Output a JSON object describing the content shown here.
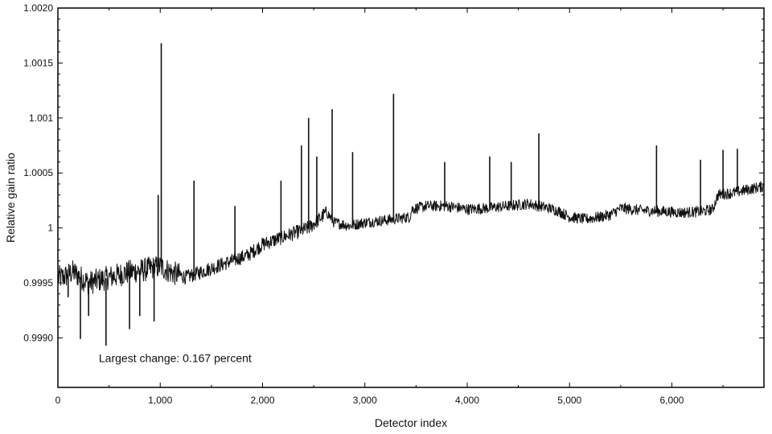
{
  "chart_data": {
    "type": "line",
    "title": "",
    "xlabel": "Detector index",
    "ylabel": "Relative gain ratio",
    "xlim": [
      0,
      6900
    ],
    "ylim": [
      0.99855,
      1.002
    ],
    "grid": false,
    "legend": "none",
    "x_ticks": [
      {
        "value": 0,
        "label": "0"
      },
      {
        "value": 1000,
        "label": "1,000"
      },
      {
        "value": 2000,
        "label": "2,000"
      },
      {
        "value": 3000,
        "label": "3,000"
      },
      {
        "value": 4000,
        "label": "4,000"
      },
      {
        "value": 5000,
        "label": "5,000"
      },
      {
        "value": 6000,
        "label": "6,000"
      }
    ],
    "y_ticks": [
      {
        "value": 0.999,
        "label": "0.9990"
      },
      {
        "value": 0.9995,
        "label": "0.9995"
      },
      {
        "value": 1.0,
        "label": "1"
      },
      {
        "value": 1.0005,
        "label": "1.0005"
      },
      {
        "value": 1.001,
        "label": "1.001"
      },
      {
        "value": 1.0015,
        "label": "1.0015"
      },
      {
        "value": 1.002,
        "label": "1.0020"
      }
    ],
    "series": [
      {
        "color": "#111111",
        "noise_amplitude": 5e-05,
        "x": [
          0,
          50,
          150,
          300,
          500,
          700,
          850,
          1000,
          1100,
          1250,
          1400,
          1550,
          1700,
          1850,
          2000,
          2150,
          2300,
          2450,
          2580,
          2620,
          2700,
          2850,
          3000,
          3200,
          3440,
          3460,
          3600,
          3800,
          4000,
          4200,
          4400,
          4600,
          4700,
          4800,
          4900,
          5000,
          5150,
          5300,
          5400,
          5500,
          5700,
          5900,
          6100,
          6300,
          6400,
          6450,
          6600,
          6750,
          6900
        ],
        "values": [
          0.99955,
          0.99955,
          0.9996,
          0.9995,
          0.99955,
          0.9996,
          0.99962,
          0.99965,
          0.9996,
          0.99955,
          0.9996,
          0.99965,
          0.9997,
          0.99975,
          0.99985,
          0.9999,
          0.99995,
          1.0,
          1.0001,
          1.00015,
          1.00005,
          1.00002,
          1.00005,
          1.00007,
          1.0001,
          1.00017,
          1.0002,
          1.0002,
          1.00017,
          1.00018,
          1.0002,
          1.00022,
          1.0002,
          1.00018,
          1.00015,
          1.0001,
          1.00008,
          1.0001,
          1.00012,
          1.00018,
          1.00016,
          1.00015,
          1.00014,
          1.00015,
          1.00017,
          1.0003,
          1.00032,
          1.00035,
          1.00038
        ],
        "spikes": [
          {
            "x": 1010,
            "y": 1.00168
          },
          {
            "x": 2450,
            "y": 1.001
          },
          {
            "x": 2680,
            "y": 1.00108
          },
          {
            "x": 3280,
            "y": 1.00122
          },
          {
            "x": 2880,
            "y": 1.00069
          },
          {
            "x": 4700,
            "y": 1.00086
          },
          {
            "x": 5850,
            "y": 1.00075
          },
          {
            "x": 1330,
            "y": 1.00043
          },
          {
            "x": 2180,
            "y": 1.00043
          },
          {
            "x": 2380,
            "y": 1.00075
          },
          {
            "x": 2530,
            "y": 1.00065
          },
          {
            "x": 3780,
            "y": 1.0006
          },
          {
            "x": 1730,
            "y": 1.0002
          },
          {
            "x": 4220,
            "y": 1.00065
          },
          {
            "x": 4430,
            "y": 1.0006
          },
          {
            "x": 6500,
            "y": 1.00071
          },
          {
            "x": 6640,
            "y": 1.00072
          },
          {
            "x": 6280,
            "y": 1.00062
          },
          {
            "x": 980,
            "y": 1.0003
          },
          {
            "x": 100,
            "y": 0.99937
          },
          {
            "x": 220,
            "y": 0.99899
          },
          {
            "x": 470,
            "y": 0.99893
          },
          {
            "x": 700,
            "y": 0.99908
          },
          {
            "x": 940,
            "y": 0.99915
          },
          {
            "x": 300,
            "y": 0.9992
          },
          {
            "x": 800,
            "y": 0.9992
          }
        ]
      }
    ],
    "annotations": [
      {
        "text": "Largest change: 0.167 percent",
        "x": 400,
        "y": 0.99878
      }
    ]
  }
}
